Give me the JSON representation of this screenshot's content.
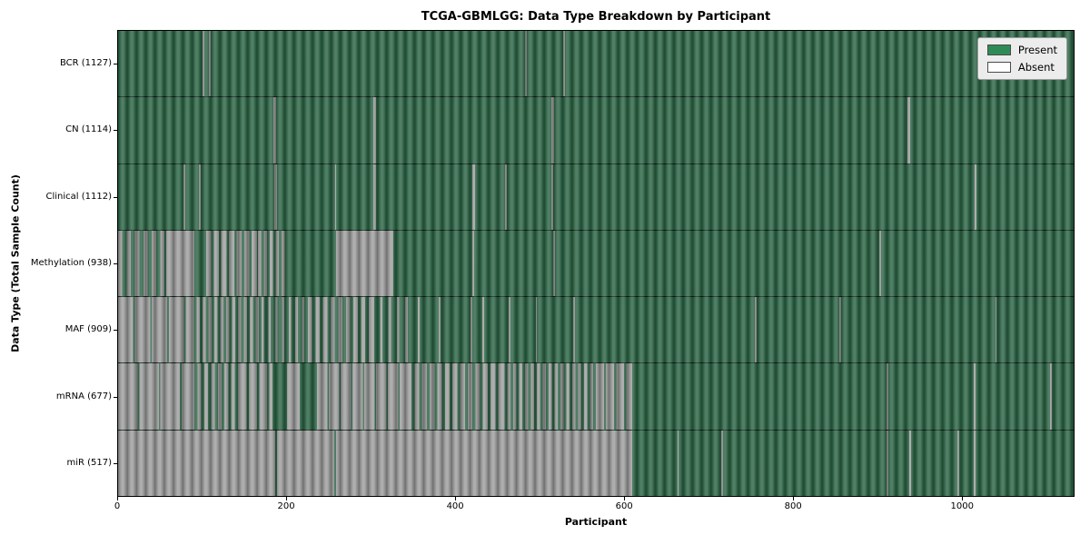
{
  "title": "TCGA-GBMLGG: Data Type Breakdown by Participant",
  "axes": {
    "xlabel": "Participant",
    "ylabel": "Data Type (Total Sample Count)",
    "x_ticks": [
      0,
      200,
      400,
      600,
      800,
      1000
    ],
    "x_max": 1133
  },
  "legend": {
    "items": [
      {
        "label": "Present",
        "color": "#2e8b57"
      },
      {
        "label": "Absent",
        "color": "#ffffff"
      }
    ]
  },
  "chart_data": {
    "type": "heatmap",
    "title": "TCGA-GBMLGG: Data Type Breakdown by Participant",
    "xlabel": "Participant",
    "ylabel": "Data Type (Total Sample Count)",
    "x_range": [
      0,
      1133
    ],
    "legend_position": "upper right",
    "colors": {
      "present": "#2f6748",
      "absent": "#9e9e9e"
    },
    "rows": [
      {
        "label": "BCR (1127)",
        "total": 1127,
        "base": "present",
        "segments": [
          {
            "s": 100,
            "e": 102,
            "t": "absent"
          },
          {
            "s": 108,
            "e": 110,
            "t": "absent"
          },
          {
            "s": 483,
            "e": 485,
            "t": "absent"
          },
          {
            "s": 528,
            "e": 530,
            "t": "absent"
          }
        ]
      },
      {
        "label": "CN (1114)",
        "total": 1114,
        "base": "present",
        "segments": [
          {
            "s": 184,
            "e": 187,
            "t": "absent"
          },
          {
            "s": 303,
            "e": 306,
            "t": "absent"
          },
          {
            "s": 514,
            "e": 517,
            "t": "absent"
          },
          {
            "s": 936,
            "e": 939,
            "t": "absent"
          }
        ]
      },
      {
        "label": "Clinical (1112)",
        "total": 1112,
        "base": "present",
        "segments": [
          {
            "s": 78,
            "e": 80,
            "t": "absent"
          },
          {
            "s": 96,
            "e": 98,
            "t": "absent"
          },
          {
            "s": 185,
            "e": 188,
            "t": "absent"
          },
          {
            "s": 257,
            "e": 259,
            "t": "absent"
          },
          {
            "s": 303,
            "e": 306,
            "t": "absent"
          },
          {
            "s": 420,
            "e": 423,
            "t": "absent"
          },
          {
            "s": 459,
            "e": 461,
            "t": "absent"
          },
          {
            "s": 514,
            "e": 516,
            "t": "absent"
          },
          {
            "s": 1016,
            "e": 1018,
            "t": "absent"
          }
        ]
      },
      {
        "label": "Methylation (938)",
        "total": 938,
        "base": "present",
        "segments": [
          {
            "s": 0,
            "e": 57,
            "t": "mixed",
            "f": 0.5,
            "p": 10
          },
          {
            "s": 57,
            "e": 91,
            "t": "absent"
          },
          {
            "s": 105,
            "e": 166,
            "t": "mixed",
            "f": 0.68,
            "p": 9
          },
          {
            "s": 166,
            "e": 199,
            "t": "mixed",
            "f": 0.55,
            "p": 7
          },
          {
            "s": 258,
            "e": 326,
            "t": "absent"
          },
          {
            "s": 420,
            "e": 422,
            "t": "absent"
          },
          {
            "s": 516,
            "e": 518,
            "t": "absent"
          },
          {
            "s": 903,
            "e": 905,
            "t": "absent"
          }
        ]
      },
      {
        "label": "MAF (909)",
        "total": 909,
        "base": "present",
        "segments": [
          {
            "s": 0,
            "e": 86,
            "t": "mixed",
            "f": 0.9,
            "p": 20
          },
          {
            "s": 86,
            "e": 170,
            "t": "mixed",
            "f": 0.5,
            "p": 7
          },
          {
            "s": 170,
            "e": 225,
            "t": "mixed",
            "f": 0.35,
            "p": 8
          },
          {
            "s": 225,
            "e": 300,
            "t": "mixed",
            "f": 0.55,
            "p": 9
          },
          {
            "s": 300,
            "e": 345,
            "t": "mixed",
            "f": 0.3,
            "p": 10
          },
          {
            "s": 355,
            "e": 358,
            "t": "absent"
          },
          {
            "s": 380,
            "e": 382,
            "t": "absent"
          },
          {
            "s": 418,
            "e": 420,
            "t": "absent"
          },
          {
            "s": 432,
            "e": 434,
            "t": "absent"
          },
          {
            "s": 463,
            "e": 465,
            "t": "absent"
          },
          {
            "s": 495,
            "e": 497,
            "t": "absent"
          },
          {
            "s": 540,
            "e": 542,
            "t": "absent"
          },
          {
            "s": 755,
            "e": 757,
            "t": "absent"
          },
          {
            "s": 855,
            "e": 857,
            "t": "absent"
          },
          {
            "s": 1040,
            "e": 1042,
            "t": "absent"
          }
        ]
      },
      {
        "label": "mRNA (677)",
        "total": 677,
        "base": "present",
        "segments": [
          {
            "s": 0,
            "e": 86,
            "t": "mixed",
            "f": 0.93,
            "p": 25
          },
          {
            "s": 86,
            "e": 143,
            "t": "mixed",
            "f": 0.55,
            "p": 8
          },
          {
            "s": 143,
            "e": 183,
            "t": "mixed",
            "f": 0.78,
            "p": 12
          },
          {
            "s": 200,
            "e": 215,
            "t": "absent"
          },
          {
            "s": 236,
            "e": 343,
            "t": "mixed",
            "f": 0.87,
            "p": 14
          },
          {
            "s": 343,
            "e": 455,
            "t": "mixed",
            "f": 0.62,
            "p": 9
          },
          {
            "s": 455,
            "e": 567,
            "t": "mixed",
            "f": 0.5,
            "p": 7
          },
          {
            "s": 567,
            "e": 610,
            "t": "mixed",
            "f": 0.8,
            "p": 12
          },
          {
            "s": 911,
            "e": 913,
            "t": "absent"
          },
          {
            "s": 1015,
            "e": 1017,
            "t": "absent"
          },
          {
            "s": 1105,
            "e": 1107,
            "t": "absent"
          }
        ]
      },
      {
        "label": "miR (517)",
        "total": 517,
        "base": "present",
        "segments": [
          {
            "s": 0,
            "e": 610,
            "t": "absent"
          },
          {
            "s": 186,
            "e": 188,
            "t": "present"
          },
          {
            "s": 256,
            "e": 258,
            "t": "present"
          },
          {
            "s": 663,
            "e": 665,
            "t": "absent"
          },
          {
            "s": 715,
            "e": 717,
            "t": "absent"
          },
          {
            "s": 911,
            "e": 913,
            "t": "absent"
          },
          {
            "s": 938,
            "e": 940,
            "t": "absent"
          },
          {
            "s": 995,
            "e": 997,
            "t": "absent"
          },
          {
            "s": 1015,
            "e": 1017,
            "t": "absent"
          }
        ]
      }
    ]
  }
}
